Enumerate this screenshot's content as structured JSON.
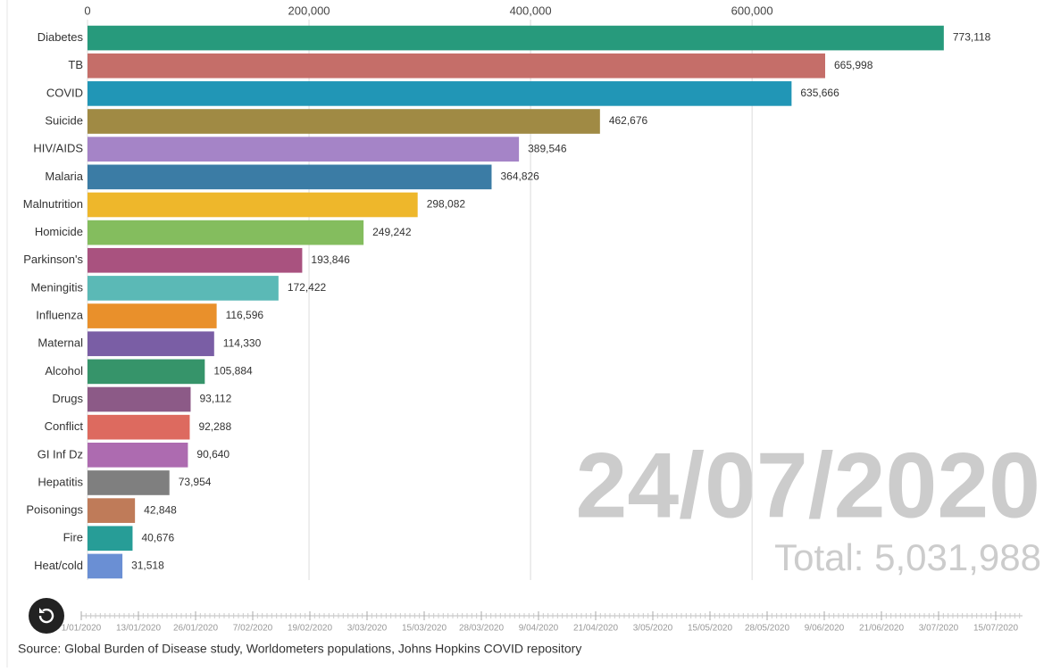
{
  "chart_data": {
    "type": "bar",
    "orientation": "horizontal",
    "categories": [
      "Diabetes",
      "TB",
      "COVID",
      "Suicide",
      "HIV/AIDS",
      "Malaria",
      "Malnutrition",
      "Homicide",
      "Parkinson's",
      "Meningitis",
      "Influenza",
      "Maternal",
      "Alcohol",
      "Drugs",
      "Conflict",
      "GI Inf Dz",
      "Hepatitis",
      "Poisonings",
      "Fire",
      "Heat/cold"
    ],
    "values": [
      773118,
      665998,
      635666,
      462676,
      389546,
      364826,
      298082,
      249242,
      193846,
      172422,
      116596,
      114330,
      105884,
      93112,
      92288,
      90640,
      73954,
      42848,
      40676,
      31518
    ],
    "value_labels": [
      "773,118",
      "665,998",
      "635,666",
      "462,676",
      "389,546",
      "364,826",
      "298,082",
      "249,242",
      "193,846",
      "172,422",
      "116,596",
      "114,330",
      "105,884",
      "93,112",
      "92,288",
      "90,640",
      "73,954",
      "42,848",
      "40,676",
      "31,518"
    ],
    "colors": [
      "#279a7c",
      "#c56e69",
      "#2196b6",
      "#a08a44",
      "#a584c7",
      "#3b7ca5",
      "#eeb72b",
      "#84bd5e",
      "#a9527f",
      "#5bb9b6",
      "#e9902b",
      "#7a5ea5",
      "#36946a",
      "#8c5a87",
      "#dd6a5f",
      "#ad6bb0",
      "#7f7f7f",
      "#bf7b59",
      "#279d97",
      "#6a8fd4"
    ],
    "xlim": [
      0,
      860000
    ],
    "xticks": [
      0,
      {
        "value": 200000,
        "label": "200,000"
      },
      {
        "value": 400000,
        "label": "400,000"
      },
      {
        "value": 600000,
        "label": "600,000"
      }
    ],
    "grid": true,
    "date": "24/07/2020",
    "total": "Total: 5,031,988",
    "timeline": [
      "1/01/2020",
      "13/01/2020",
      "26/01/2020",
      "7/02/2020",
      "19/02/2020",
      "3/03/2020",
      "15/03/2020",
      "28/03/2020",
      "9/04/2020",
      "21/04/2020",
      "3/05/2020",
      "15/05/2020",
      "28/05/2020",
      "9/06/2020",
      "21/06/2020",
      "3/07/2020",
      "15/07/2020"
    ],
    "source": "Source: Global Burden of Disease study, Worldometers populations, Johns Hopkins COVID repository"
  }
}
